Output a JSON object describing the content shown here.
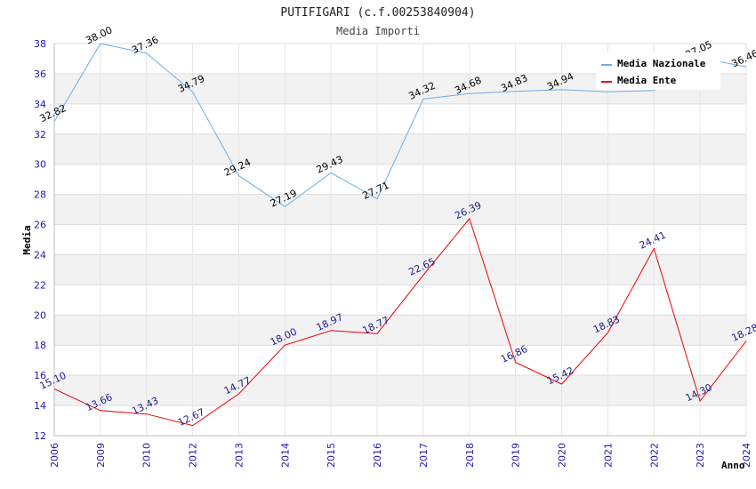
{
  "chart_data": {
    "type": "line",
    "title": "PUTIFIGARI (c.f.00253840904)",
    "subtitle": "Media Importi",
    "xlabel": "Anno",
    "ylabel": "Media",
    "ylim": [
      12,
      38
    ],
    "yticks": [
      12,
      14,
      16,
      18,
      20,
      22,
      24,
      26,
      28,
      30,
      32,
      34,
      36,
      38
    ],
    "categories": [
      "2006",
      "2009",
      "2010",
      "2012",
      "2013",
      "2014",
      "2015",
      "2016",
      "2017",
      "2018",
      "2019",
      "2020",
      "2021",
      "2022",
      "2023",
      "2024"
    ],
    "series": [
      {
        "name": "Media Nazionale",
        "color": "#6aaee8",
        "values": [
          32.82,
          38.0,
          37.36,
          34.79,
          29.24,
          27.19,
          29.43,
          27.71,
          34.32,
          34.68,
          34.83,
          34.94,
          34.8,
          34.88,
          37.05,
          36.46
        ],
        "labels": [
          "32.82",
          "38.00",
          "37.36",
          "34.79",
          "29.24",
          "27.19",
          "29.43",
          "27.71",
          "34.32",
          "34.68",
          "34.83",
          "34.94",
          "",
          "",
          "37.05",
          "36.46"
        ]
      },
      {
        "name": "Media Ente",
        "color": "#ee0000",
        "values": [
          15.1,
          13.66,
          13.43,
          12.67,
          14.77,
          18.0,
          18.97,
          18.77,
          22.65,
          26.39,
          16.86,
          15.42,
          18.83,
          24.41,
          14.3,
          18.28
        ],
        "labels": [
          "15.10",
          "13.66",
          "13.43",
          "12.67",
          "14.77",
          "18.00",
          "18.97",
          "18.77",
          "22.65",
          "26.39",
          "16.86",
          "15.42",
          "18.83",
          "24.41",
          "14.30",
          "18.28"
        ]
      }
    ],
    "legend": "top-right",
    "grid": true
  }
}
